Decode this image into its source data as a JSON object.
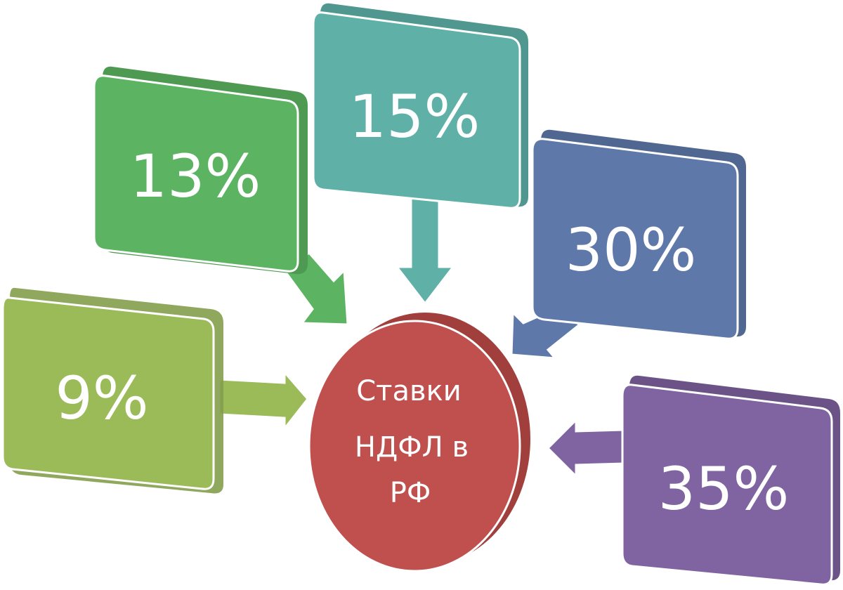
{
  "center": {
    "lines": [
      "Ставки",
      "НДФЛ в",
      "РФ"
    ],
    "color": "#c0504d"
  },
  "rates": [
    {
      "label": "9%",
      "color": "#9bbb59"
    },
    {
      "label": "13%",
      "color": "#5cb361"
    },
    {
      "label": "15%",
      "color": "#5fb0a7"
    },
    {
      "label": "30%",
      "color": "#5e78a9"
    },
    {
      "label": "35%",
      "color": "#8064a2"
    }
  ]
}
